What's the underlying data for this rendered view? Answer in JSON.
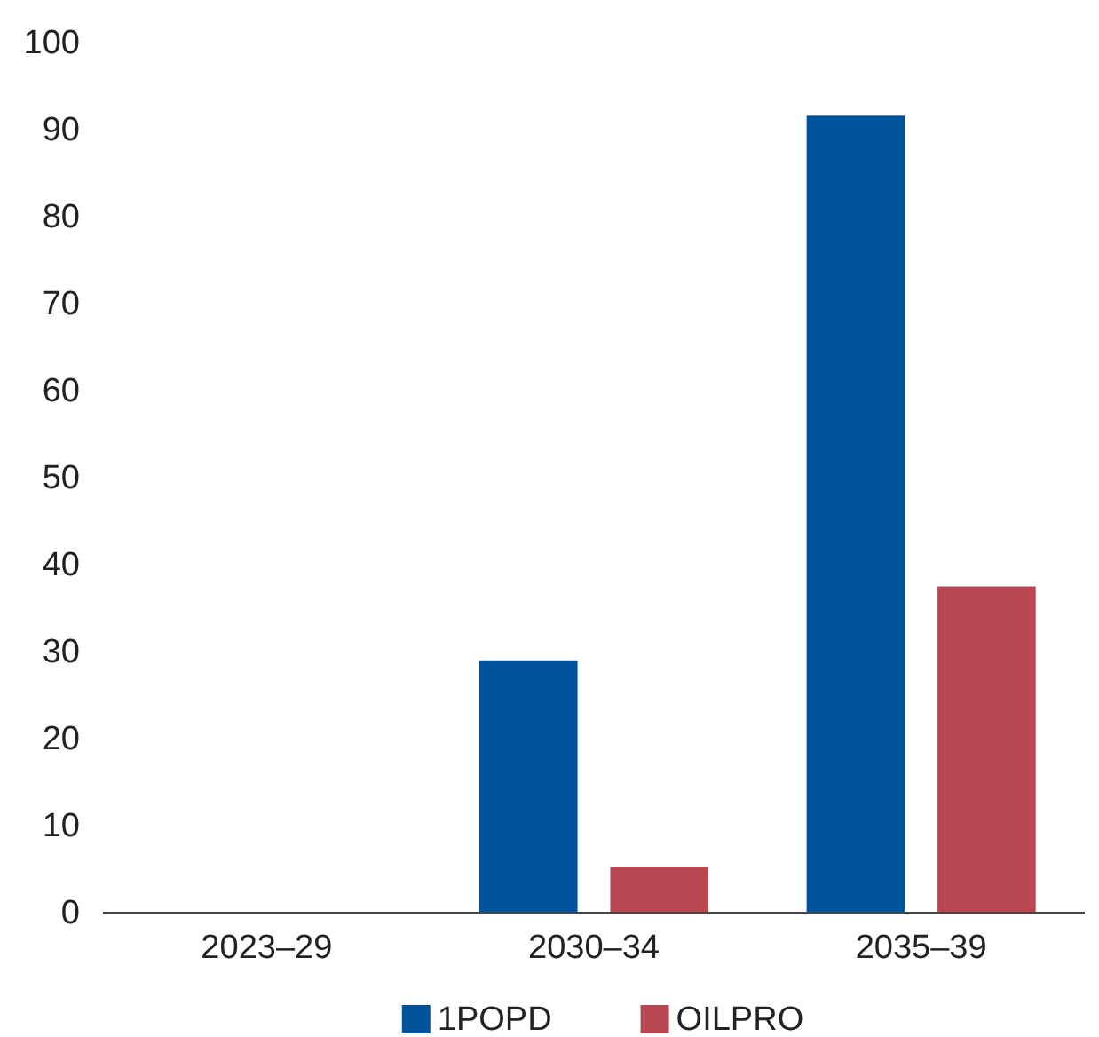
{
  "chart_data": {
    "type": "bar",
    "categories": [
      "2023–29",
      "2030–34",
      "2035–39"
    ],
    "series": [
      {
        "name": "1POPD",
        "color": "#00539b",
        "values": [
          0,
          29,
          91.6
        ]
      },
      {
        "name": "OILPRO",
        "color": "#b94752",
        "values": [
          0,
          5.3,
          37.5
        ]
      }
    ],
    "ylim": [
      0,
      100
    ],
    "yticks": [
      0,
      10,
      20,
      30,
      40,
      50,
      60,
      70,
      80,
      90,
      100
    ],
    "grid": false,
    "legend": "bottom"
  }
}
